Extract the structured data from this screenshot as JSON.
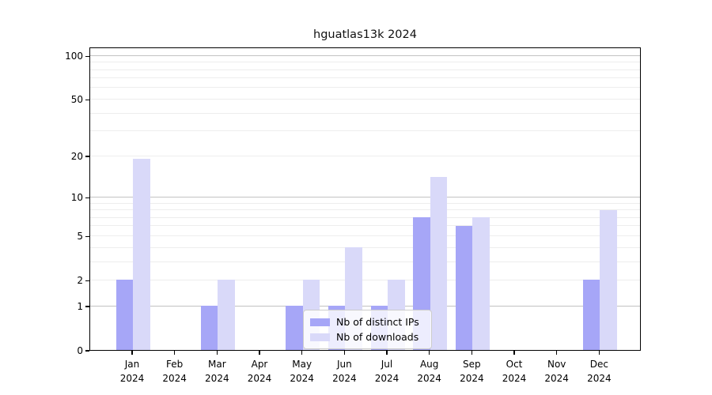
{
  "chart_data": {
    "type": "bar",
    "title": "hguatlas13k 2024",
    "categories": [
      "Jan",
      "Feb",
      "Mar",
      "Apr",
      "May",
      "Jun",
      "Jul",
      "Aug",
      "Sep",
      "Oct",
      "Nov",
      "Dec"
    ],
    "year_label": "2024",
    "series": [
      {
        "name": "Nb of distinct IPs",
        "color": "#a6a6f7",
        "values": [
          2,
          0,
          1,
          0,
          1,
          1,
          1,
          7,
          6,
          0,
          0,
          2
        ]
      },
      {
        "name": "Nb of downloads",
        "color": "#d9d9f9",
        "values": [
          19,
          0,
          2,
          0,
          2,
          4,
          2,
          14,
          7,
          0,
          0,
          8
        ]
      }
    ],
    "y_axis": {
      "scale": "log10(1+x)",
      "tick_labels": [
        100,
        50,
        20,
        10,
        5,
        2,
        1,
        0
      ],
      "major_gridlines": [
        1,
        10,
        100
      ],
      "minor_gridlines": [
        2,
        3,
        4,
        5,
        6,
        7,
        8,
        9,
        20,
        30,
        40,
        50,
        60,
        70,
        80,
        90
      ]
    },
    "legend": {
      "position": "lower-center"
    }
  }
}
